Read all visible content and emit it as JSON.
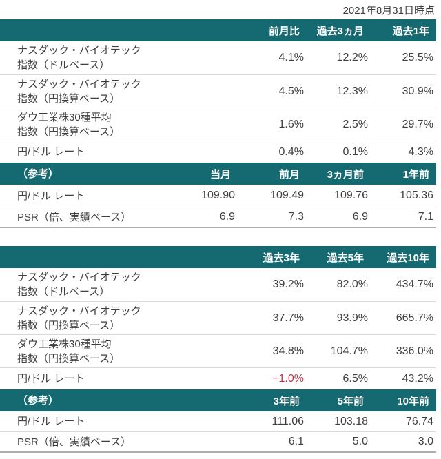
{
  "meta": {
    "as_of": "2021年8月31日時点"
  },
  "colors": {
    "header-bg": "#146a70",
    "header-text": "#ffffff",
    "body-text": "#3f3f3f",
    "negative": "#c03a4a"
  },
  "table1": {
    "header": {
      "cols": [
        "前月比",
        "過去3ヵ月",
        "過去1年"
      ]
    },
    "rows": [
      {
        "label1": "ナスダック・バイオテック",
        "label2": "指数（ドルベース）",
        "values": [
          "4.1%",
          "12.2%",
          "25.5%"
        ]
      },
      {
        "label1": "ナスダック・バイオテック",
        "label2": "指数（円換算ベース）",
        "values": [
          "4.5%",
          "12.3%",
          "30.9%"
        ]
      },
      {
        "label1": "ダウ工業株30種平均",
        "label2": "指数（円換算ベース）",
        "values": [
          "1.6%",
          "2.5%",
          "29.7%"
        ]
      },
      {
        "label1": "円/ドル レート",
        "label2": "",
        "values": [
          "0.4%",
          "0.1%",
          "4.3%"
        ]
      }
    ],
    "ref": {
      "header": {
        "label": "（参考）",
        "cols": [
          "当月",
          "前月",
          "3ヵ月前",
          "1年前"
        ]
      },
      "rows": [
        {
          "label": "円/ドル レート",
          "values": [
            "109.90",
            "109.49",
            "109.76",
            "105.36"
          ]
        },
        {
          "label": "PSR（倍、実績ベース）",
          "values": [
            "6.9",
            "7.3",
            "6.9",
            "7.1"
          ]
        }
      ]
    }
  },
  "table2": {
    "header": {
      "cols": [
        "過去3年",
        "過去5年",
        "過去10年"
      ]
    },
    "rows": [
      {
        "label1": "ナスダック・バイオテック",
        "label2": "指数（ドルベース）",
        "values": [
          "39.2%",
          "82.0%",
          "434.7%"
        ]
      },
      {
        "label1": "ナスダック・バイオテック",
        "label2": "指数（円換算ベース）",
        "values": [
          "37.7%",
          "93.9%",
          "665.7%"
        ]
      },
      {
        "label1": "ダウ工業株30種平均",
        "label2": "指数（円換算ベース）",
        "values": [
          "34.8%",
          "104.7%",
          "336.0%"
        ]
      },
      {
        "label1": "円/ドル レート",
        "label2": "",
        "values": [
          "−1.0%",
          "6.5%",
          "43.2%"
        ]
      }
    ],
    "ref": {
      "header": {
        "label": "（参考）",
        "cols": [
          "3年前",
          "5年前",
          "10年前"
        ]
      },
      "rows": [
        {
          "label": "円/ドル レート",
          "values": [
            "111.06",
            "103.18",
            "76.74"
          ]
        },
        {
          "label": "PSR（倍、実績ベース）",
          "values": [
            "6.1",
            "5.0",
            "3.0"
          ]
        }
      ]
    }
  }
}
